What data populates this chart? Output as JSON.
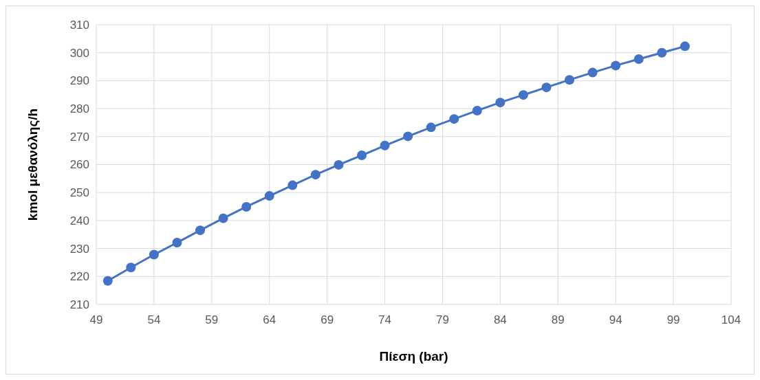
{
  "chart_data": {
    "type": "line",
    "xlabel": "Πίεση (bar)",
    "ylabel": "kmol μεθανόλης/h",
    "x": [
      50,
      52,
      54,
      56,
      58,
      60,
      62,
      64,
      66,
      68,
      70,
      72,
      74,
      76,
      78,
      80,
      82,
      84,
      86,
      88,
      90,
      92,
      94,
      96,
      98,
      100
    ],
    "series": [
      {
        "color": "#4472c4",
        "values": [
          218.4,
          223.2,
          227.8,
          232.1,
          236.5,
          240.8,
          244.9,
          248.8,
          252.6,
          256.4,
          259.9,
          263.3,
          266.8,
          270.1,
          273.3,
          276.3,
          279.3,
          282.2,
          284.9,
          287.6,
          290.3,
          292.9,
          295.4,
          297.7,
          300.0,
          302.3
        ]
      }
    ],
    "xlim": [
      49,
      104
    ],
    "xticks": [
      49,
      54,
      59,
      64,
      69,
      74,
      79,
      84,
      89,
      94,
      99,
      104
    ],
    "ylim": [
      210,
      310
    ],
    "yticks": [
      210,
      220,
      230,
      240,
      250,
      260,
      270,
      280,
      290,
      300,
      310
    ],
    "grid": true,
    "marker": "circle",
    "line_style": "solid"
  }
}
